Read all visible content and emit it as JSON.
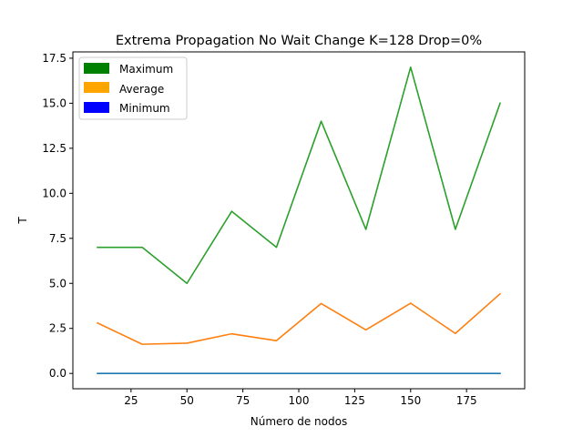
{
  "chart_data": {
    "type": "line",
    "title": "Extrema Propagation No Wait Change K=128 Drop=0%",
    "xlabel": "Número de nodos",
    "ylabel": "T",
    "x": [
      10,
      30,
      50,
      70,
      90,
      110,
      130,
      150,
      170,
      190
    ],
    "xlim": [
      -1,
      201
    ],
    "ylim": [
      -0.85,
      17.85
    ],
    "xticks": [
      25,
      50,
      75,
      100,
      125,
      150,
      175
    ],
    "xtick_labels": [
      "25",
      "50",
      "75",
      "100",
      "125",
      "150",
      "175"
    ],
    "yticks": [
      0,
      2.5,
      5,
      7.5,
      10,
      12.5,
      15,
      17.5
    ],
    "ytick_labels": [
      "0.0",
      "2.5",
      "5.0",
      "7.5",
      "10.0",
      "12.5",
      "15.0",
      "17.5"
    ],
    "grid": false,
    "legend_position": "top-left",
    "legend": [
      {
        "label": "Maximum",
        "color": "#008000"
      },
      {
        "label": "Average",
        "color": "#FFA500"
      },
      {
        "label": "Minimum",
        "color": "#0000FF"
      }
    ],
    "series": [
      {
        "values": [
          0,
          0,
          0,
          0,
          0,
          0,
          0,
          0,
          0,
          0
        ],
        "color": "#1f77b4"
      },
      {
        "values": [
          2.8,
          1.62,
          1.68,
          2.2,
          1.82,
          3.88,
          2.42,
          3.9,
          2.22,
          4.42
        ],
        "color": "#ff7f0e"
      },
      {
        "values": [
          7,
          7,
          5,
          9,
          7,
          14,
          8,
          17,
          8,
          15
        ],
        "color": "#2ca02c"
      }
    ]
  }
}
